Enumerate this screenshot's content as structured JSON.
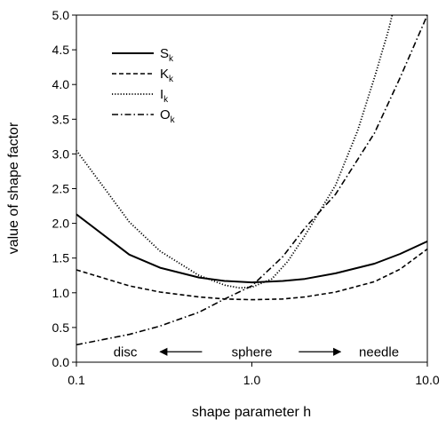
{
  "chart_data": {
    "type": "line",
    "xlabel": "shape parameter h",
    "ylabel": "value of shape factor",
    "x_scale": "log",
    "xlim": [
      0.1,
      10.0
    ],
    "ylim": [
      0.0,
      5.0
    ],
    "grid": false,
    "legend_position": "top-left",
    "x_ticks": [
      "0.1",
      "1.0",
      "10.0"
    ],
    "y_ticks": [
      "0.0",
      "0.5",
      "1.0",
      "1.5",
      "2.0",
      "2.5",
      "3.0",
      "3.5",
      "4.0",
      "4.5",
      "5.0"
    ],
    "series": [
      {
        "name": "S",
        "name_sub": "k",
        "style": "solid",
        "points": [
          [
            0.1,
            2.13
          ],
          [
            0.2,
            1.55
          ],
          [
            0.3,
            1.36
          ],
          [
            0.5,
            1.22
          ],
          [
            0.7,
            1.17
          ],
          [
            1.0,
            1.15
          ],
          [
            1.5,
            1.17
          ],
          [
            2.0,
            1.2
          ],
          [
            3.0,
            1.28
          ],
          [
            5.0,
            1.42
          ],
          [
            7.0,
            1.56
          ],
          [
            10.0,
            1.74
          ]
        ]
      },
      {
        "name": "K",
        "name_sub": "k",
        "style": "dashed",
        "points": [
          [
            0.1,
            1.33
          ],
          [
            0.2,
            1.1
          ],
          [
            0.3,
            1.01
          ],
          [
            0.5,
            0.94
          ],
          [
            0.7,
            0.91
          ],
          [
            1.0,
            0.9
          ],
          [
            1.5,
            0.91
          ],
          [
            2.0,
            0.94
          ],
          [
            3.0,
            1.01
          ],
          [
            5.0,
            1.16
          ],
          [
            7.0,
            1.34
          ],
          [
            10.0,
            1.63
          ]
        ]
      },
      {
        "name": "I",
        "name_sub": "k",
        "style": "dotted",
        "points": [
          [
            0.1,
            3.05
          ],
          [
            0.15,
            2.45
          ],
          [
            0.2,
            2.02
          ],
          [
            0.3,
            1.6
          ],
          [
            0.5,
            1.25
          ],
          [
            0.7,
            1.11
          ],
          [
            0.85,
            1.07
          ],
          [
            1.0,
            1.08
          ],
          [
            1.3,
            1.2
          ],
          [
            1.6,
            1.45
          ],
          [
            2.0,
            1.82
          ],
          [
            3.0,
            2.55
          ],
          [
            4.0,
            3.33
          ],
          [
            5.0,
            4.1
          ],
          [
            6.0,
            4.78
          ],
          [
            6.3,
            5.0
          ]
        ]
      },
      {
        "name": "O",
        "name_sub": "k",
        "style": "dashdot",
        "points": [
          [
            0.1,
            0.25
          ],
          [
            0.2,
            0.4
          ],
          [
            0.3,
            0.52
          ],
          [
            0.5,
            0.72
          ],
          [
            0.7,
            0.91
          ],
          [
            1.0,
            1.1
          ],
          [
            1.5,
            1.52
          ],
          [
            2.0,
            1.93
          ],
          [
            3.0,
            2.42
          ],
          [
            5.0,
            3.3
          ],
          [
            7.0,
            4.1
          ],
          [
            10.0,
            5.0
          ]
        ]
      }
    ],
    "annotations": [
      {
        "text": "disc",
        "x": 0.19,
        "y": 0.15,
        "anchor": "middle"
      },
      {
        "text": "sphere",
        "x": 1.0,
        "y": 0.15,
        "anchor": "middle"
      },
      {
        "text": "needle",
        "x": 5.3,
        "y": 0.15,
        "anchor": "middle"
      }
    ],
    "arrows": [
      {
        "from": [
          0.52,
          0.15
        ],
        "to": [
          0.3,
          0.15
        ]
      },
      {
        "from": [
          1.85,
          0.15
        ],
        "to": [
          3.2,
          0.15
        ]
      }
    ]
  }
}
